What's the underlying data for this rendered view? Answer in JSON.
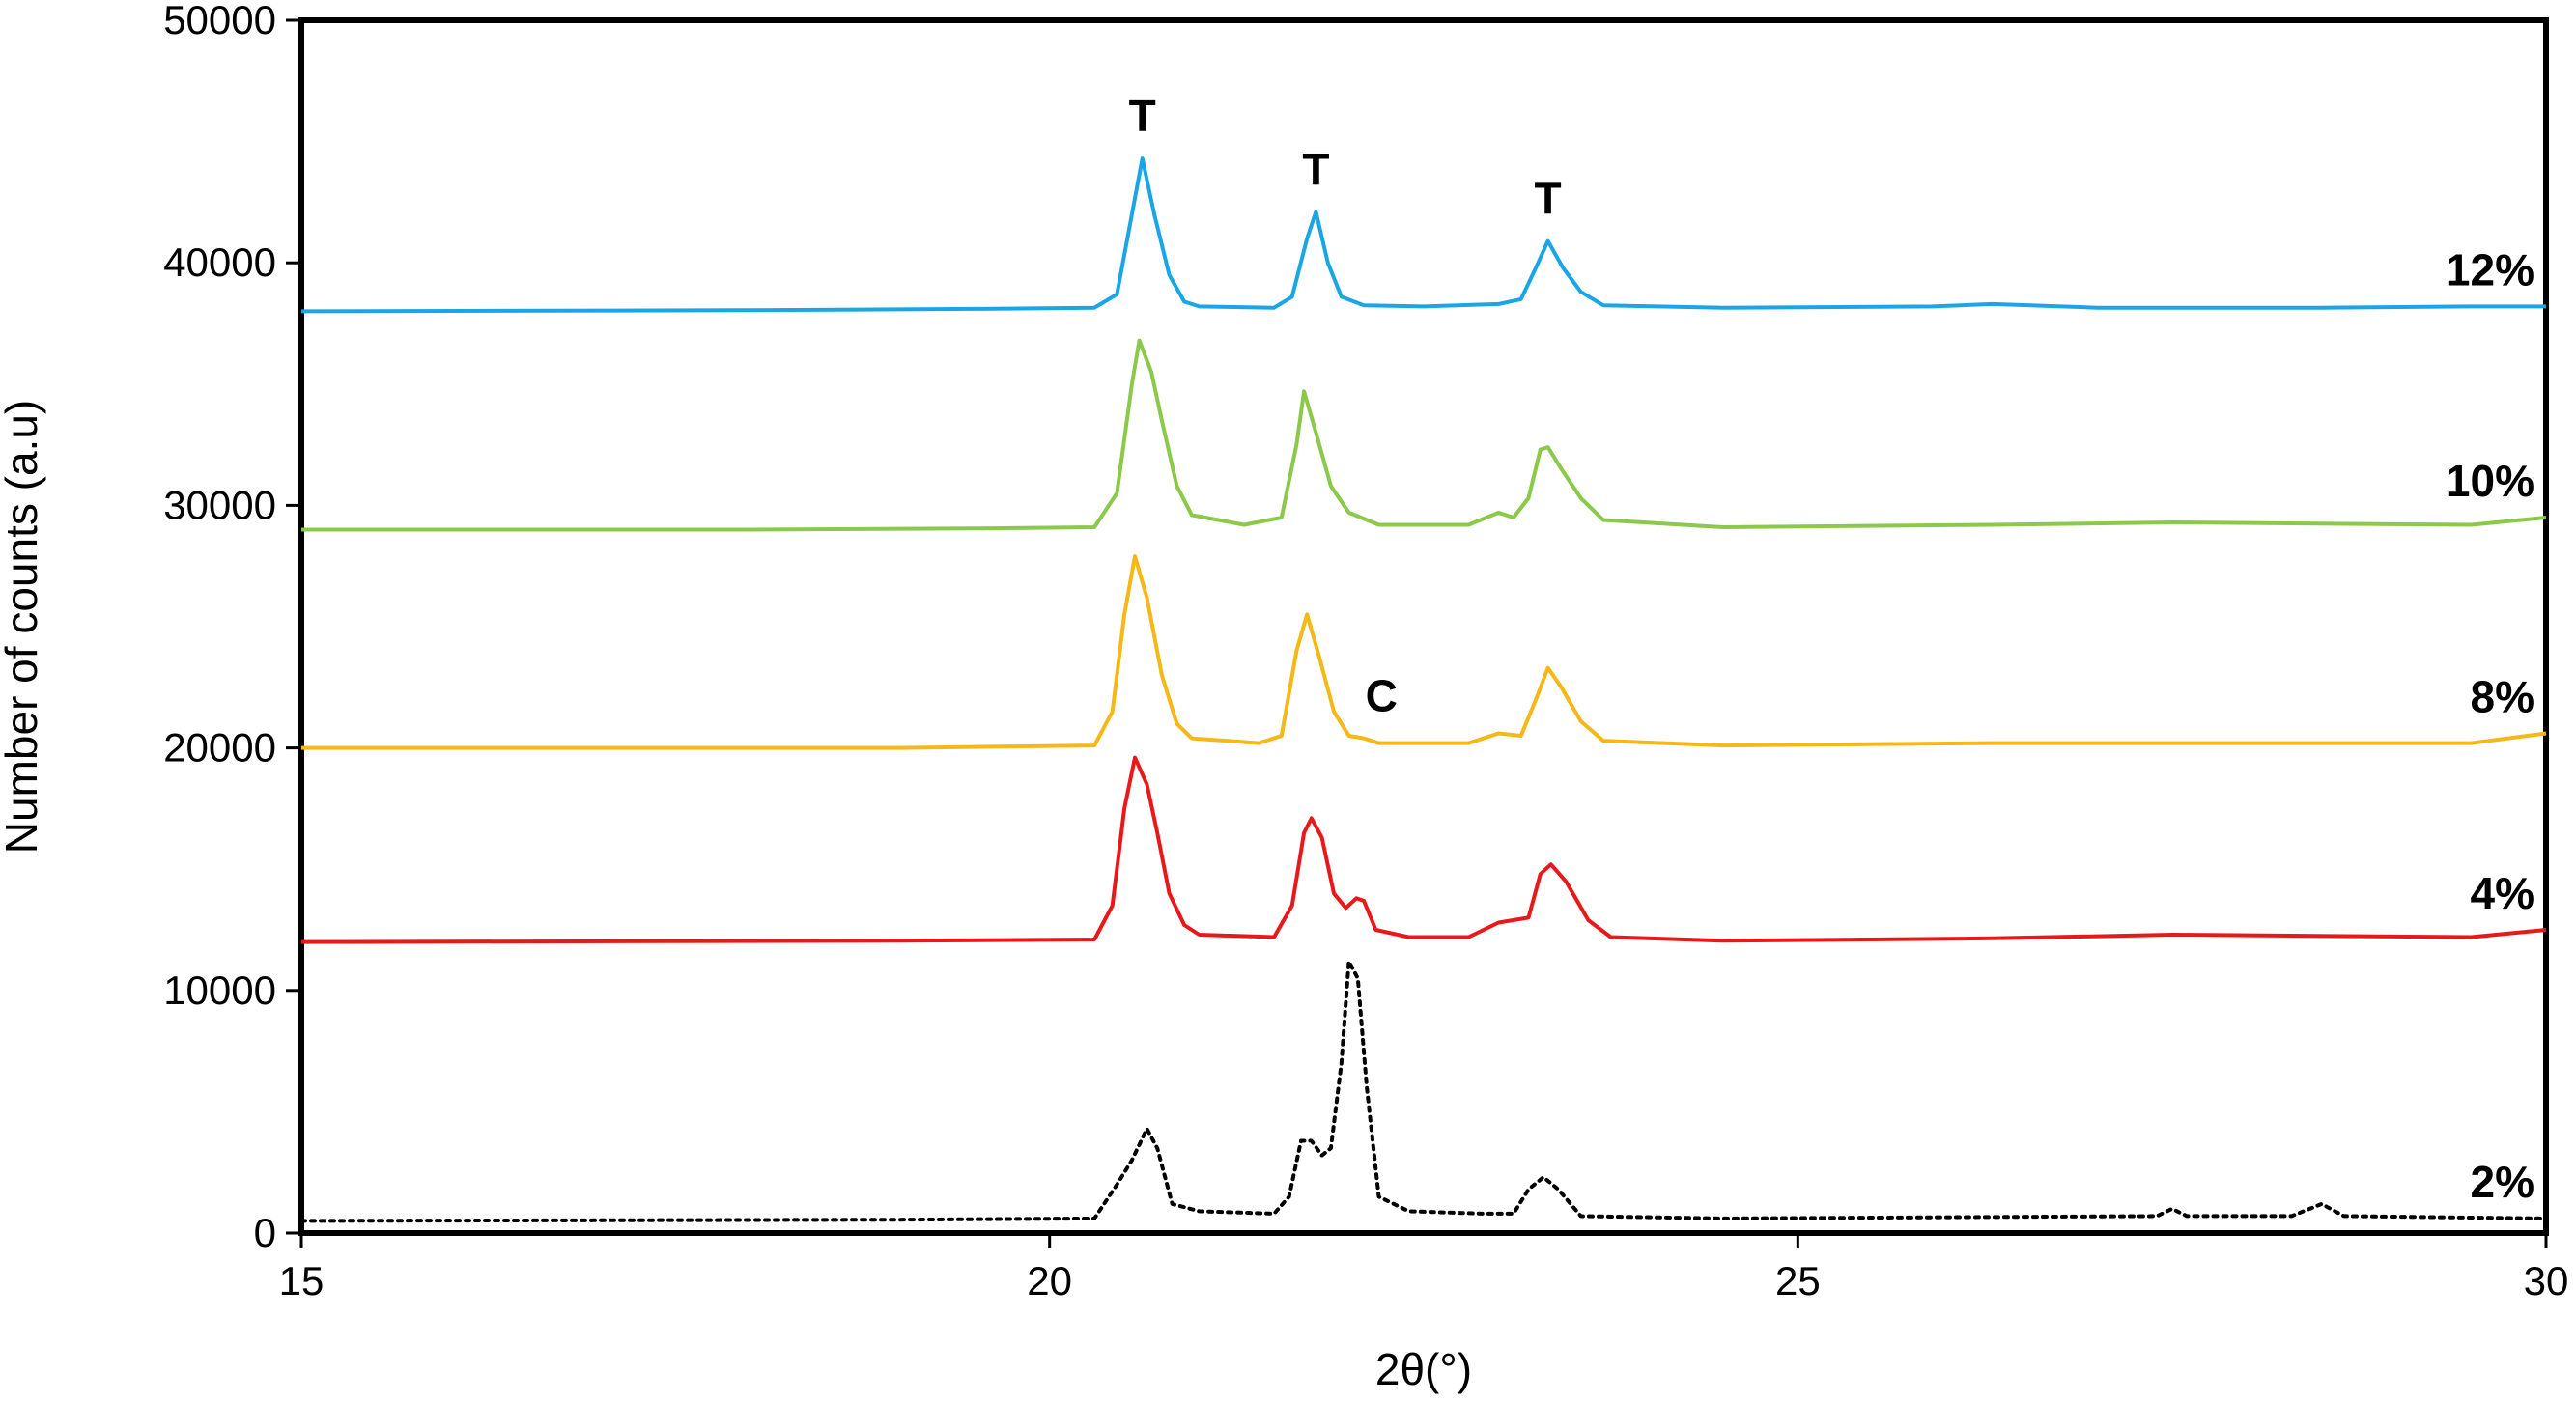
{
  "chart_data": {
    "type": "line",
    "title": "",
    "xlabel": "2θ(°)",
    "ylabel": "Number of counts (a.u)",
    "xlim": [
      15,
      30
    ],
    "ylim": [
      0,
      50000
    ],
    "x_ticks": [
      15,
      20,
      25,
      30
    ],
    "y_ticks": [
      0,
      10000,
      20000,
      30000,
      40000,
      50000
    ],
    "grid": false,
    "legend": "labels at right end of each curve",
    "series": [
      {
        "name": "12%",
        "color": "#1aa6e4",
        "style": "solid",
        "points": [
          [
            15,
            38000
          ],
          [
            18,
            38050
          ],
          [
            19.5,
            38100
          ],
          [
            20.3,
            38150
          ],
          [
            20.45,
            38700
          ],
          [
            20.55,
            42000
          ],
          [
            20.62,
            44300
          ],
          [
            20.7,
            42000
          ],
          [
            20.8,
            39500
          ],
          [
            20.9,
            38400
          ],
          [
            21.0,
            38200
          ],
          [
            21.5,
            38150
          ],
          [
            21.62,
            38600
          ],
          [
            21.72,
            41000
          ],
          [
            21.78,
            42100
          ],
          [
            21.86,
            40000
          ],
          [
            21.95,
            38600
          ],
          [
            22.1,
            38250
          ],
          [
            22.5,
            38200
          ],
          [
            23.0,
            38300
          ],
          [
            23.15,
            38500
          ],
          [
            23.25,
            39800
          ],
          [
            23.33,
            40900
          ],
          [
            23.43,
            39800
          ],
          [
            23.55,
            38800
          ],
          [
            23.7,
            38250
          ],
          [
            24.5,
            38150
          ],
          [
            25.9,
            38200
          ],
          [
            26.3,
            38300
          ],
          [
            27.0,
            38150
          ],
          [
            28.5,
            38150
          ],
          [
            29.5,
            38200
          ],
          [
            30,
            38200
          ]
        ]
      },
      {
        "name": "10%",
        "color": "#8bc94a",
        "style": "solid",
        "points": [
          [
            15,
            29000
          ],
          [
            18,
            29000
          ],
          [
            19.5,
            29050
          ],
          [
            20.3,
            29100
          ],
          [
            20.45,
            30500
          ],
          [
            20.55,
            35000
          ],
          [
            20.6,
            36800
          ],
          [
            20.68,
            35500
          ],
          [
            20.75,
            33500
          ],
          [
            20.85,
            30800
          ],
          [
            20.95,
            29600
          ],
          [
            21.3,
            29200
          ],
          [
            21.55,
            29500
          ],
          [
            21.65,
            32500
          ],
          [
            21.7,
            34700
          ],
          [
            21.78,
            33000
          ],
          [
            21.88,
            30800
          ],
          [
            22.0,
            29700
          ],
          [
            22.2,
            29200
          ],
          [
            22.8,
            29200
          ],
          [
            23.0,
            29700
          ],
          [
            23.1,
            29500
          ],
          [
            23.2,
            30300
          ],
          [
            23.28,
            32300
          ],
          [
            23.33,
            32400
          ],
          [
            23.42,
            31500
          ],
          [
            23.55,
            30300
          ],
          [
            23.7,
            29400
          ],
          [
            24.5,
            29100
          ],
          [
            26.3,
            29200
          ],
          [
            27.5,
            29300
          ],
          [
            29.5,
            29200
          ],
          [
            30,
            29500
          ]
        ]
      },
      {
        "name": "8%",
        "color": "#f5b819",
        "style": "solid",
        "points": [
          [
            15,
            20000
          ],
          [
            19,
            20000
          ],
          [
            20.3,
            20100
          ],
          [
            20.42,
            21500
          ],
          [
            20.5,
            25500
          ],
          [
            20.57,
            27900
          ],
          [
            20.65,
            26200
          ],
          [
            20.75,
            23000
          ],
          [
            20.85,
            21000
          ],
          [
            20.95,
            20400
          ],
          [
            21.4,
            20200
          ],
          [
            21.55,
            20500
          ],
          [
            21.65,
            24000
          ],
          [
            21.72,
            25500
          ],
          [
            21.8,
            23800
          ],
          [
            21.9,
            21500
          ],
          [
            22.0,
            20500
          ],
          [
            22.1,
            20400
          ],
          [
            22.2,
            20200
          ],
          [
            22.8,
            20200
          ],
          [
            23.0,
            20600
          ],
          [
            23.15,
            20500
          ],
          [
            23.25,
            22000
          ],
          [
            23.33,
            23300
          ],
          [
            23.42,
            22500
          ],
          [
            23.55,
            21100
          ],
          [
            23.7,
            20300
          ],
          [
            24.5,
            20100
          ],
          [
            26.3,
            20200
          ],
          [
            27.5,
            20200
          ],
          [
            29.5,
            20200
          ],
          [
            30,
            20600
          ]
        ]
      },
      {
        "name": "4%",
        "color": "#e8191a",
        "style": "solid",
        "points": [
          [
            15,
            12000
          ],
          [
            19,
            12050
          ],
          [
            20.3,
            12100
          ],
          [
            20.42,
            13500
          ],
          [
            20.5,
            17500
          ],
          [
            20.57,
            19600
          ],
          [
            20.65,
            18500
          ],
          [
            20.72,
            16500
          ],
          [
            20.8,
            14000
          ],
          [
            20.9,
            12700
          ],
          [
            21.0,
            12300
          ],
          [
            21.5,
            12200
          ],
          [
            21.62,
            13500
          ],
          [
            21.7,
            16500
          ],
          [
            21.75,
            17100
          ],
          [
            21.82,
            16300
          ],
          [
            21.9,
            14000
          ],
          [
            21.98,
            13400
          ],
          [
            22.05,
            13800
          ],
          [
            22.1,
            13700
          ],
          [
            22.18,
            12500
          ],
          [
            22.4,
            12200
          ],
          [
            22.8,
            12200
          ],
          [
            23.0,
            12800
          ],
          [
            23.2,
            13000
          ],
          [
            23.28,
            14800
          ],
          [
            23.35,
            15200
          ],
          [
            23.45,
            14500
          ],
          [
            23.6,
            12900
          ],
          [
            23.75,
            12200
          ],
          [
            24.5,
            12050
          ],
          [
            26.3,
            12150
          ],
          [
            27.5,
            12300
          ],
          [
            29.5,
            12200
          ],
          [
            30,
            12500
          ]
        ]
      },
      {
        "name": "2%",
        "color": "#000000",
        "style": "dotted",
        "points": [
          [
            15,
            500
          ],
          [
            19,
            550
          ],
          [
            20.3,
            600
          ],
          [
            20.45,
            2000
          ],
          [
            20.55,
            3000
          ],
          [
            20.65,
            4300
          ],
          [
            20.72,
            3500
          ],
          [
            20.82,
            1200
          ],
          [
            21.0,
            900
          ],
          [
            21.5,
            800
          ],
          [
            21.6,
            1500
          ],
          [
            21.68,
            3800
          ],
          [
            21.75,
            3800
          ],
          [
            21.82,
            3200
          ],
          [
            21.88,
            3500
          ],
          [
            21.95,
            7000
          ],
          [
            22.0,
            11200
          ],
          [
            22.06,
            10500
          ],
          [
            22.12,
            6000
          ],
          [
            22.2,
            1500
          ],
          [
            22.4,
            900
          ],
          [
            22.9,
            800
          ],
          [
            23.1,
            800
          ],
          [
            23.2,
            1800
          ],
          [
            23.3,
            2300
          ],
          [
            23.4,
            1800
          ],
          [
            23.55,
            700
          ],
          [
            24.5,
            600
          ],
          [
            27.4,
            700
          ],
          [
            27.5,
            1000
          ],
          [
            27.6,
            700
          ],
          [
            28.3,
            700
          ],
          [
            28.5,
            1200
          ],
          [
            28.65,
            700
          ],
          [
            30,
            600
          ]
        ]
      }
    ],
    "annotations": [
      {
        "text": "T",
        "x": 20.62,
        "y": 44300
      },
      {
        "text": "T",
        "x": 21.78,
        "y": 42100
      },
      {
        "text": "T",
        "x": 23.33,
        "y": 40900
      },
      {
        "text": "C",
        "x": 22.05,
        "y": 20400
      }
    ]
  }
}
